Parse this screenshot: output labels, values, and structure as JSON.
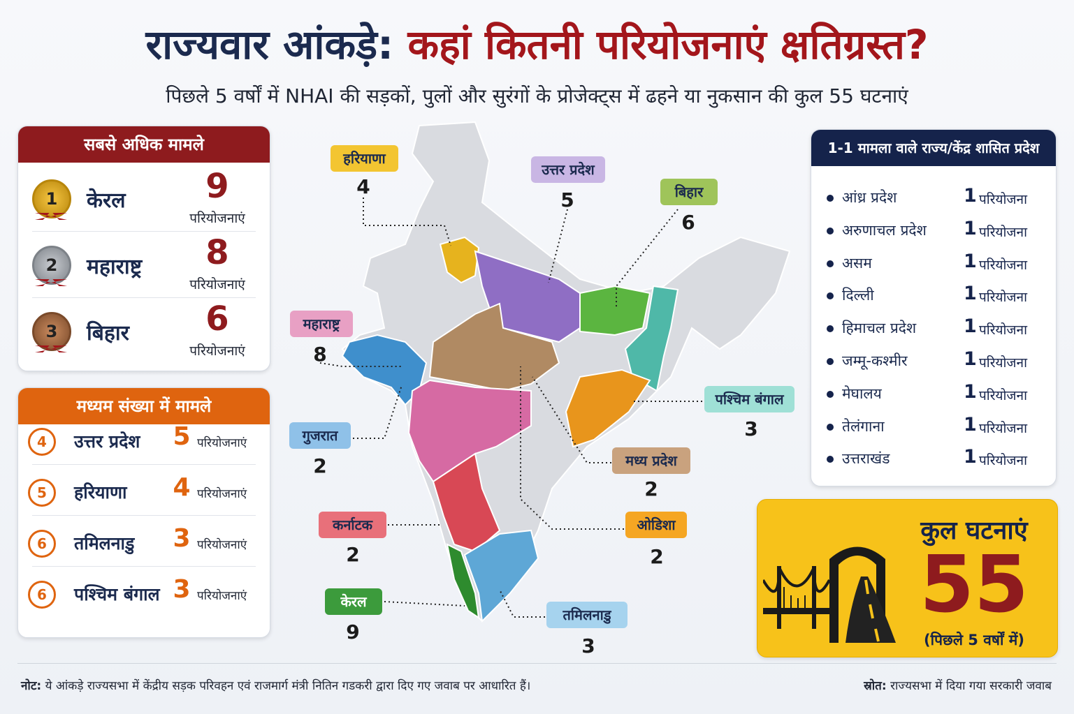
{
  "header": {
    "title_part1": "राज्यवार आंकड़े:",
    "title_part2": "कहां कितनी परियोजनाएं क्षतिग्रस्त?",
    "subtitle": "पिछले 5 वर्षों में NHAI की सड़कों, पुलों और सुरंगों के प्रोजेक्ट्स में ढहने या नुकसान की कुल 55 घटनाएं"
  },
  "top_cases": {
    "title": "सबसे अधिक मामले",
    "items": [
      {
        "rank": 1,
        "state": "केरल",
        "count": 9,
        "unit": "परियोजनाएं"
      },
      {
        "rank": 2,
        "state": "महाराष्ट्र",
        "count": 8,
        "unit": "परियोजनाएं"
      },
      {
        "rank": 3,
        "state": "बिहार",
        "count": 6,
        "unit": "परियोजनाएं"
      }
    ]
  },
  "medium_cases": {
    "title": "मध्यम संख्या में मामले",
    "items": [
      {
        "rank": 4,
        "state": "उत्तर प्रदेश",
        "count": 5,
        "unit": "परियोजनाएं"
      },
      {
        "rank": 5,
        "state": "हरियाणा",
        "count": 4,
        "unit": "परियोजनाएं"
      },
      {
        "rank": 6,
        "state": "तमिलनाडु",
        "count": 3,
        "unit": "परियोजनाएं"
      },
      {
        "rank": 6,
        "state": "पश्चिम बंगाल",
        "count": 3,
        "unit": "परियोजनाएं"
      }
    ]
  },
  "map_labels": [
    {
      "state": "हरियाणा",
      "count": 4
    },
    {
      "state": "उत्तर प्रदेश",
      "count": 5
    },
    {
      "state": "बिहार",
      "count": 6
    },
    {
      "state": "महाराष्ट्र",
      "count": 8
    },
    {
      "state": "गुजरात",
      "count": 2
    },
    {
      "state": "पश्चिम बंगाल",
      "count": 3
    },
    {
      "state": "मध्य प्रदेश",
      "count": 2
    },
    {
      "state": "कर्नाटक",
      "count": 2
    },
    {
      "state": "ओडिशा",
      "count": 2
    },
    {
      "state": "केरल",
      "count": 9
    },
    {
      "state": "तमिलनाडु",
      "count": 3
    }
  ],
  "single_cases": {
    "title": "1-1 मामला वाले राज्य/केंद्र शासित प्रदेश",
    "items": [
      {
        "state": "आंध्र प्रदेश",
        "count": 1,
        "unit": "परियोजना"
      },
      {
        "state": "अरुणाचल प्रदेश",
        "count": 1,
        "unit": "परियोजना"
      },
      {
        "state": "असम",
        "count": 1,
        "unit": "परियोजना"
      },
      {
        "state": "दिल्ली",
        "count": 1,
        "unit": "परियोजना"
      },
      {
        "state": "हिमाचल प्रदेश",
        "count": 1,
        "unit": "परियोजना"
      },
      {
        "state": "जम्मू-कश्मीर",
        "count": 1,
        "unit": "परियोजना"
      },
      {
        "state": "मेघालय",
        "count": 1,
        "unit": "परियोजना"
      },
      {
        "state": "तेलंगाना",
        "count": 1,
        "unit": "परियोजना"
      },
      {
        "state": "उत्तराखंड",
        "count": 1,
        "unit": "परियोजना"
      }
    ]
  },
  "total": {
    "title": "कुल घटनाएं",
    "value": 55,
    "note": "(पिछले 5 वर्षों में)"
  },
  "footer": {
    "note_label": "नोट:",
    "note": "ये आंकड़े राज्यसभा में केंद्रीय सड़क परिवहन एवं राजमार्ग मंत्री नितिन गडकरी द्वारा दिए गए जवाब पर आधारित हैं।",
    "source_label": "स्रोत:",
    "source": "राज्यसभा में दिया गया सरकारी जवाब"
  }
}
